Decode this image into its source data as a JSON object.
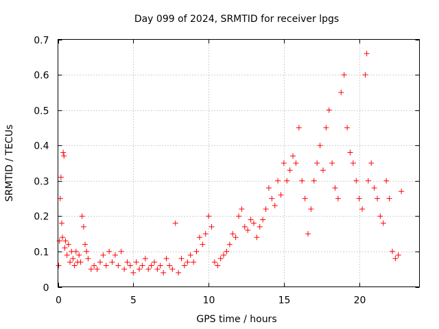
{
  "chart_data": {
    "type": "scatter",
    "title": "Day 099 of 2024, SRMTID for receiver lpgs",
    "xlabel": "GPS time / hours",
    "ylabel": "SRMTID / TECUs",
    "xlim": [
      0,
      24
    ],
    "ylim": [
      0,
      0.7
    ],
    "xticks": [
      0,
      5,
      10,
      15,
      20
    ],
    "yticks": [
      0,
      0.1,
      0.2,
      0.3,
      0.4,
      0.5,
      0.6,
      0.7
    ],
    "xtick_labels": [
      "0",
      "5",
      "10",
      "15",
      "20"
    ],
    "ytick_labels": [
      "0",
      "0.1",
      "0.2",
      "0.3",
      "0.4",
      "0.5",
      "0.6",
      "0.7"
    ],
    "grid": true,
    "marker": "+",
    "color": "#ff0000",
    "series": [
      {
        "name": "SRMTID",
        "points": [
          [
            0.05,
            0.06
          ],
          [
            0.1,
            0.13
          ],
          [
            0.15,
            0.25
          ],
          [
            0.2,
            0.31
          ],
          [
            0.25,
            0.18
          ],
          [
            0.3,
            0.14
          ],
          [
            0.35,
            0.38
          ],
          [
            0.4,
            0.37
          ],
          [
            0.45,
            0.11
          ],
          [
            0.5,
            0.13
          ],
          [
            0.6,
            0.09
          ],
          [
            0.7,
            0.12
          ],
          [
            0.8,
            0.07
          ],
          [
            0.9,
            0.1
          ],
          [
            1.0,
            0.08
          ],
          [
            1.1,
            0.06
          ],
          [
            1.2,
            0.1
          ],
          [
            1.3,
            0.07
          ],
          [
            1.4,
            0.09
          ],
          [
            1.5,
            0.07
          ],
          [
            1.6,
            0.2
          ],
          [
            1.7,
            0.17
          ],
          [
            1.8,
            0.12
          ],
          [
            1.9,
            0.1
          ],
          [
            2.0,
            0.08
          ],
          [
            2.2,
            0.05
          ],
          [
            2.4,
            0.06
          ],
          [
            2.6,
            0.05
          ],
          [
            2.8,
            0.07
          ],
          [
            3.0,
            0.09
          ],
          [
            3.2,
            0.06
          ],
          [
            3.4,
            0.1
          ],
          [
            3.6,
            0.07
          ],
          [
            3.8,
            0.09
          ],
          [
            4.0,
            0.06
          ],
          [
            4.2,
            0.1
          ],
          [
            4.4,
            0.05
          ],
          [
            4.6,
            0.07
          ],
          [
            4.8,
            0.06
          ],
          [
            5.0,
            0.04
          ],
          [
            5.2,
            0.07
          ],
          [
            5.4,
            0.05
          ],
          [
            5.6,
            0.06
          ],
          [
            5.8,
            0.08
          ],
          [
            6.0,
            0.05
          ],
          [
            6.2,
            0.06
          ],
          [
            6.4,
            0.07
          ],
          [
            6.6,
            0.05
          ],
          [
            6.8,
            0.06
          ],
          [
            7.0,
            0.04
          ],
          [
            7.2,
            0.08
          ],
          [
            7.4,
            0.06
          ],
          [
            7.6,
            0.05
          ],
          [
            7.8,
            0.18
          ],
          [
            8.0,
            0.04
          ],
          [
            8.2,
            0.08
          ],
          [
            8.4,
            0.06
          ],
          [
            8.6,
            0.07
          ],
          [
            8.8,
            0.09
          ],
          [
            9.0,
            0.07
          ],
          [
            9.2,
            0.1
          ],
          [
            9.4,
            0.14
          ],
          [
            9.6,
            0.12
          ],
          [
            9.8,
            0.15
          ],
          [
            10.0,
            0.2
          ],
          [
            10.2,
            0.17
          ],
          [
            10.4,
            0.07
          ],
          [
            10.6,
            0.06
          ],
          [
            10.8,
            0.08
          ],
          [
            11.0,
            0.09
          ],
          [
            11.2,
            0.1
          ],
          [
            11.4,
            0.12
          ],
          [
            11.6,
            0.15
          ],
          [
            11.8,
            0.14
          ],
          [
            12.0,
            0.2
          ],
          [
            12.2,
            0.22
          ],
          [
            12.4,
            0.17
          ],
          [
            12.6,
            0.16
          ],
          [
            12.8,
            0.19
          ],
          [
            13.0,
            0.18
          ],
          [
            13.2,
            0.14
          ],
          [
            13.4,
            0.17
          ],
          [
            13.6,
            0.19
          ],
          [
            13.8,
            0.22
          ],
          [
            14.0,
            0.28
          ],
          [
            14.2,
            0.25
          ],
          [
            14.4,
            0.23
          ],
          [
            14.6,
            0.3
          ],
          [
            14.8,
            0.26
          ],
          [
            15.0,
            0.35
          ],
          [
            15.2,
            0.3
          ],
          [
            15.4,
            0.33
          ],
          [
            15.6,
            0.37
          ],
          [
            15.8,
            0.35
          ],
          [
            16.0,
            0.45
          ],
          [
            16.2,
            0.3
          ],
          [
            16.4,
            0.25
          ],
          [
            16.6,
            0.15
          ],
          [
            16.8,
            0.22
          ],
          [
            17.0,
            0.3
          ],
          [
            17.2,
            0.35
          ],
          [
            17.4,
            0.4
          ],
          [
            17.6,
            0.33
          ],
          [
            17.8,
            0.45
          ],
          [
            18.0,
            0.5
          ],
          [
            18.2,
            0.35
          ],
          [
            18.4,
            0.28
          ],
          [
            18.6,
            0.25
          ],
          [
            18.8,
            0.55
          ],
          [
            19.0,
            0.6
          ],
          [
            19.2,
            0.45
          ],
          [
            19.4,
            0.38
          ],
          [
            19.6,
            0.35
          ],
          [
            19.8,
            0.3
          ],
          [
            20.0,
            0.25
          ],
          [
            20.2,
            0.22
          ],
          [
            20.4,
            0.6
          ],
          [
            20.5,
            0.66
          ],
          [
            20.6,
            0.3
          ],
          [
            20.8,
            0.35
          ],
          [
            21.0,
            0.28
          ],
          [
            21.2,
            0.25
          ],
          [
            21.4,
            0.2
          ],
          [
            21.6,
            0.18
          ],
          [
            21.8,
            0.3
          ],
          [
            22.0,
            0.25
          ],
          [
            22.2,
            0.1
          ],
          [
            22.4,
            0.08
          ],
          [
            22.6,
            0.09
          ],
          [
            22.8,
            0.27
          ]
        ]
      }
    ]
  }
}
